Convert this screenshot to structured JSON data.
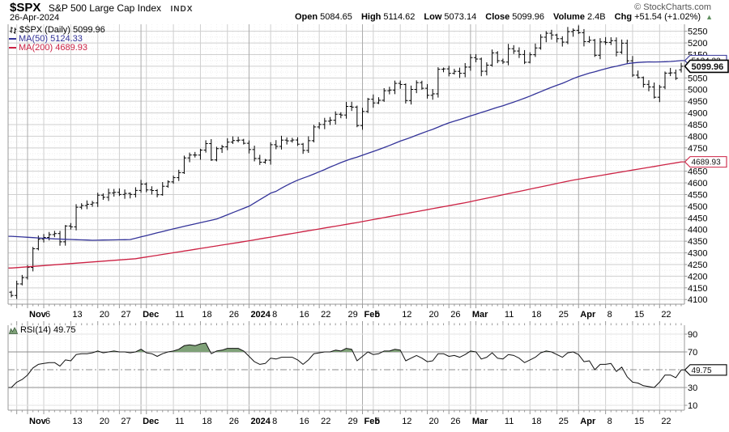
{
  "header": {
    "symbol": "$SPX",
    "index_name": "S&P 500 Large Cap Index",
    "exchange": "INDX",
    "copyright": "© StockCharts.com",
    "date": "26-Apr-2024",
    "quote": {
      "open_label": "Open",
      "open": "5084.65",
      "high_label": "High",
      "high": "5114.62",
      "low_label": "Low",
      "low": "5073.14",
      "close_label": "Close",
      "close": "5099.96",
      "volume_label": "Volume",
      "volume": "2.4B",
      "chg_label": "Chg",
      "chg_value": "+51.54 (+1.02%)",
      "direction": "up",
      "up_arrow": "▲"
    }
  },
  "colors": {
    "ma50": "#333399",
    "ma200": "#cc2244",
    "bars": "#000000",
    "grid": "#cfcfcf",
    "grid_month": "#ababab",
    "grid_faint": "#ededed",
    "axis": "#999999",
    "label": "#000000",
    "rsi_line": "#111111",
    "rsi_fill": "#7fa178",
    "rsi_level": "#8c8c8c",
    "up_arrow": "#5f8f5f",
    "tag_close": "#000000"
  },
  "chart_data": [
    {
      "type": "ohlc-bar",
      "panel": "price",
      "title": "$SPX (Daily) 5099.96",
      "legend": {
        "series": "$SPX (Daily) 5099.96",
        "ma50": "MA(50) 5124.33",
        "ma200": "MA(200) 4689.93"
      },
      "y_axis": {
        "min": 4080,
        "max": 5280,
        "tick_start": 4100,
        "tick_end": 5250,
        "tick_step": 50,
        "grid": true
      },
      "x_labels": [
        {
          "t": "Nov",
          "i": 3,
          "b": true
        },
        {
          "t": "6",
          "i": 6
        },
        {
          "t": "13",
          "i": 11
        },
        {
          "t": "20",
          "i": 16
        },
        {
          "t": "27",
          "i": 20
        },
        {
          "t": "Dec",
          "i": 24,
          "b": true
        },
        {
          "t": "11",
          "i": 30
        },
        {
          "t": "18",
          "i": 35
        },
        {
          "t": "26",
          "i": 40
        },
        {
          "t": "2024",
          "i": 44,
          "b": true
        },
        {
          "t": "8",
          "i": 48
        },
        {
          "t": "16",
          "i": 53
        },
        {
          "t": "22",
          "i": 57
        },
        {
          "t": "29",
          "i": 62
        },
        {
          "t": "Feb",
          "i": 65,
          "b": true
        },
        {
          "t": "5",
          "i": 67
        },
        {
          "t": "12",
          "i": 72
        },
        {
          "t": "20",
          "i": 77
        },
        {
          "t": "26",
          "i": 81
        },
        {
          "t": "Mar",
          "i": 85,
          "b": true
        },
        {
          "t": "11",
          "i": 91
        },
        {
          "t": "18",
          "i": 96
        },
        {
          "t": "25",
          "i": 101
        },
        {
          "t": "Apr",
          "i": 105,
          "b": true
        },
        {
          "t": "8",
          "i": 110
        },
        {
          "t": "15",
          "i": 115
        },
        {
          "t": "22",
          "i": 120
        }
      ],
      "week_gridlines": [
        1,
        6,
        11,
        16,
        20,
        25,
        30,
        35,
        40,
        48,
        53,
        57,
        62,
        67,
        72,
        77,
        81,
        86,
        91,
        96,
        101,
        110,
        115,
        120
      ],
      "month_gridlines": [
        3,
        24,
        44,
        65,
        85,
        105
      ],
      "dates": [
        "2023-10-27",
        "2023-10-30",
        "2023-10-31",
        "2023-11-01",
        "2023-11-02",
        "2023-11-03",
        "2023-11-06",
        "2023-11-07",
        "2023-11-08",
        "2023-11-09",
        "2023-11-10",
        "2023-11-13",
        "2023-11-14",
        "2023-11-15",
        "2023-11-16",
        "2023-11-17",
        "2023-11-20",
        "2023-11-21",
        "2023-11-22",
        "2023-11-24",
        "2023-11-27",
        "2023-11-28",
        "2023-11-29",
        "2023-11-30",
        "2023-12-01",
        "2023-12-04",
        "2023-12-05",
        "2023-12-06",
        "2023-12-07",
        "2023-12-08",
        "2023-12-11",
        "2023-12-12",
        "2023-12-13",
        "2023-12-14",
        "2023-12-15",
        "2023-12-18",
        "2023-12-19",
        "2023-12-20",
        "2023-12-21",
        "2023-12-22",
        "2023-12-26",
        "2023-12-27",
        "2023-12-28",
        "2023-12-29",
        "2024-01-02",
        "2024-01-03",
        "2024-01-04",
        "2024-01-05",
        "2024-01-08",
        "2024-01-09",
        "2024-01-10",
        "2024-01-11",
        "2024-01-12",
        "2024-01-16",
        "2024-01-17",
        "2024-01-18",
        "2024-01-19",
        "2024-01-22",
        "2024-01-23",
        "2024-01-24",
        "2024-01-25",
        "2024-01-26",
        "2024-01-29",
        "2024-01-30",
        "2024-01-31",
        "2024-02-01",
        "2024-02-02",
        "2024-02-05",
        "2024-02-06",
        "2024-02-07",
        "2024-02-08",
        "2024-02-09",
        "2024-02-12",
        "2024-02-13",
        "2024-02-14",
        "2024-02-15",
        "2024-02-16",
        "2024-02-20",
        "2024-02-21",
        "2024-02-22",
        "2024-02-23",
        "2024-02-26",
        "2024-02-27",
        "2024-02-28",
        "2024-02-29",
        "2024-03-01",
        "2024-03-04",
        "2024-03-05",
        "2024-03-06",
        "2024-03-07",
        "2024-03-08",
        "2024-03-11",
        "2024-03-12",
        "2024-03-13",
        "2024-03-14",
        "2024-03-15",
        "2024-03-18",
        "2024-03-19",
        "2024-03-20",
        "2024-03-21",
        "2024-03-22",
        "2024-03-25",
        "2024-03-26",
        "2024-03-27",
        "2024-03-28",
        "2024-04-01",
        "2024-04-02",
        "2024-04-03",
        "2024-04-04",
        "2024-04-05",
        "2024-04-08",
        "2024-04-09",
        "2024-04-10",
        "2024-04-11",
        "2024-04-12",
        "2024-04-15",
        "2024-04-16",
        "2024-04-17",
        "2024-04-18",
        "2024-04-19",
        "2024-04-22",
        "2024-04-23",
        "2024-04-24",
        "2024-04-25",
        "2024-04-26"
      ],
      "close": [
        4117.37,
        4166.82,
        4193.8,
        4237.86,
        4317.78,
        4358.34,
        4365.98,
        4378.38,
        4382.78,
        4347.35,
        4415.24,
        4411.55,
        4495.7,
        4502.88,
        4508.24,
        4514.02,
        4547.38,
        4538.19,
        4556.62,
        4559.34,
        4550.43,
        4554.89,
        4550.58,
        4567.8,
        4594.63,
        4569.78,
        4567.18,
        4549.34,
        4585.59,
        4604.37,
        4622.44,
        4643.7,
        4707.09,
        4719.55,
        4719.19,
        4740.56,
        4768.37,
        4698.35,
        4746.75,
        4754.63,
        4774.75,
        4781.58,
        4783.35,
        4769.83,
        4742.83,
        4704.81,
        4688.68,
        4697.24,
        4763.54,
        4756.5,
        4783.45,
        4780.24,
        4783.83,
        4765.98,
        4739.21,
        4780.94,
        4839.81,
        4850.43,
        4864.6,
        4868.55,
        4894.16,
        4890.97,
        4927.93,
        4924.97,
        4845.65,
        4906.19,
        4958.61,
        4942.81,
        4954.23,
        4995.06,
        4997.91,
        5026.61,
        5021.84,
        4953.17,
        5000.62,
        5029.73,
        5005.57,
        4975.51,
        4981.8,
        5087.03,
        5088.8,
        5069.53,
        5078.18,
        5069.76,
        5096.27,
        5137.08,
        5130.95,
        5078.65,
        5104.76,
        5157.36,
        5123.69,
        5117.94,
        5175.27,
        5165.31,
        5150.48,
        5117.09,
        5149.42,
        5178.51,
        5224.62,
        5241.53,
        5234.18,
        5218.19,
        5203.58,
        5248.49,
        5254.35,
        5243.77,
        5205.81,
        5211.49,
        5147.21,
        5204.34,
        5202.39,
        5209.91,
        5160.64,
        5199.06,
        5123.41,
        5061.82,
        5051.41,
        5022.21,
        5011.12,
        4967.23,
        5010.6,
        5070.55,
        5071.63,
        5048.42,
        5099.96
      ],
      "last_bar": {
        "open": 5084.65,
        "high": 5114.62,
        "low": 5073.14,
        "close": 5099.96
      },
      "ma50_value": 5124.33,
      "ma200_value": 4689.93,
      "ma50_pre_keypoints": [
        [
          0,
          4371
        ],
        [
          8,
          4360
        ],
        [
          15,
          4354
        ],
        [
          22,
          4357
        ],
        [
          30,
          4403
        ],
        [
          38,
          4445
        ],
        [
          44,
          4500
        ],
        [
          48,
          4556
        ]
      ],
      "ma200_keypoints": [
        [
          0,
          4235
        ],
        [
          23,
          4275
        ],
        [
          43,
          4348
        ],
        [
          64,
          4430
        ],
        [
          84,
          4515
        ],
        [
          104,
          4612
        ],
        [
          124,
          4689.93
        ]
      ],
      "price_tags": [
        {
          "text": "5124.33",
          "value": 5124.33,
          "color": "#333399",
          "bold": false
        },
        {
          "text": "4689.93",
          "value": 4689.93,
          "color": "#cc2244",
          "bold": false
        },
        {
          "text": "5099.96",
          "value": 5099.96,
          "color": "#000000",
          "bold": true
        }
      ]
    },
    {
      "type": "line-area",
      "panel": "rsi",
      "label": "RSI(14) 49.75",
      "levels": {
        "overbought": 70,
        "oversold": 30,
        "mid": 50
      },
      "y_ticks": [
        90,
        70,
        30,
        10
      ],
      "fill_above": 70,
      "tag": {
        "text": "49.75",
        "value": 49.75
      },
      "values": [
        30,
        36,
        39,
        44,
        52,
        56,
        57,
        58,
        58,
        54,
        61,
        60,
        67,
        68,
        68,
        69,
        71,
        69,
        70,
        71,
        70,
        70,
        69,
        70,
        73,
        69,
        68,
        65,
        68,
        70,
        71,
        73,
        77,
        78,
        77,
        79,
        80,
        68,
        71,
        72,
        74,
        74,
        74,
        71,
        65,
        59,
        56,
        57,
        63,
        62,
        64,
        64,
        64,
        61,
        56,
        61,
        68,
        69,
        70,
        70,
        72,
        71,
        74,
        73,
        60,
        65,
        70,
        67,
        68,
        71,
        71,
        73,
        72,
        60,
        63,
        66,
        63,
        59,
        60,
        68,
        68,
        65,
        66,
        64,
        67,
        71,
        70,
        62,
        64,
        69,
        63,
        62,
        67,
        66,
        63,
        58,
        61,
        64,
        69,
        71,
        70,
        67,
        64,
        69,
        70,
        67,
        59,
        60,
        50,
        56,
        56,
        57,
        48,
        53,
        42,
        36,
        35,
        32,
        31,
        30,
        36,
        44,
        44,
        41,
        49.75
      ]
    }
  ]
}
